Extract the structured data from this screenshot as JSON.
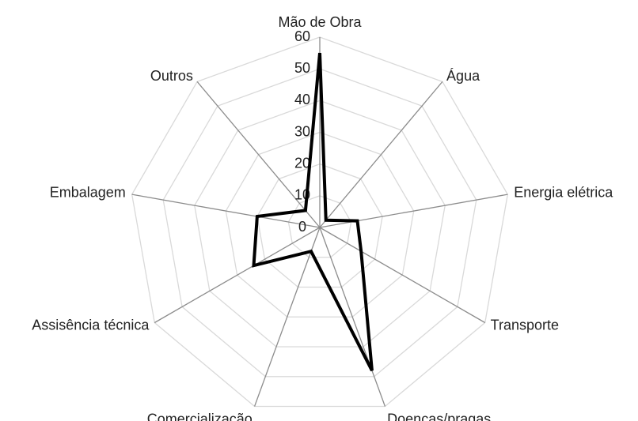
{
  "chart_data": {
    "type": "radar",
    "categories": [
      "Mão de Obra",
      "Água",
      "Energia elétrica",
      "Transporte",
      "Doenças/pragas",
      "Comercialização",
      "Assisência técnica",
      "Embalagem",
      "Outros"
    ],
    "values": [
      55,
      3,
      12,
      15,
      48,
      8,
      24,
      20,
      7
    ],
    "color": "#000000",
    "ylim": [
      0,
      60
    ],
    "yticks": [
      0,
      10,
      20,
      30,
      40,
      50,
      60
    ],
    "grid": true
  }
}
